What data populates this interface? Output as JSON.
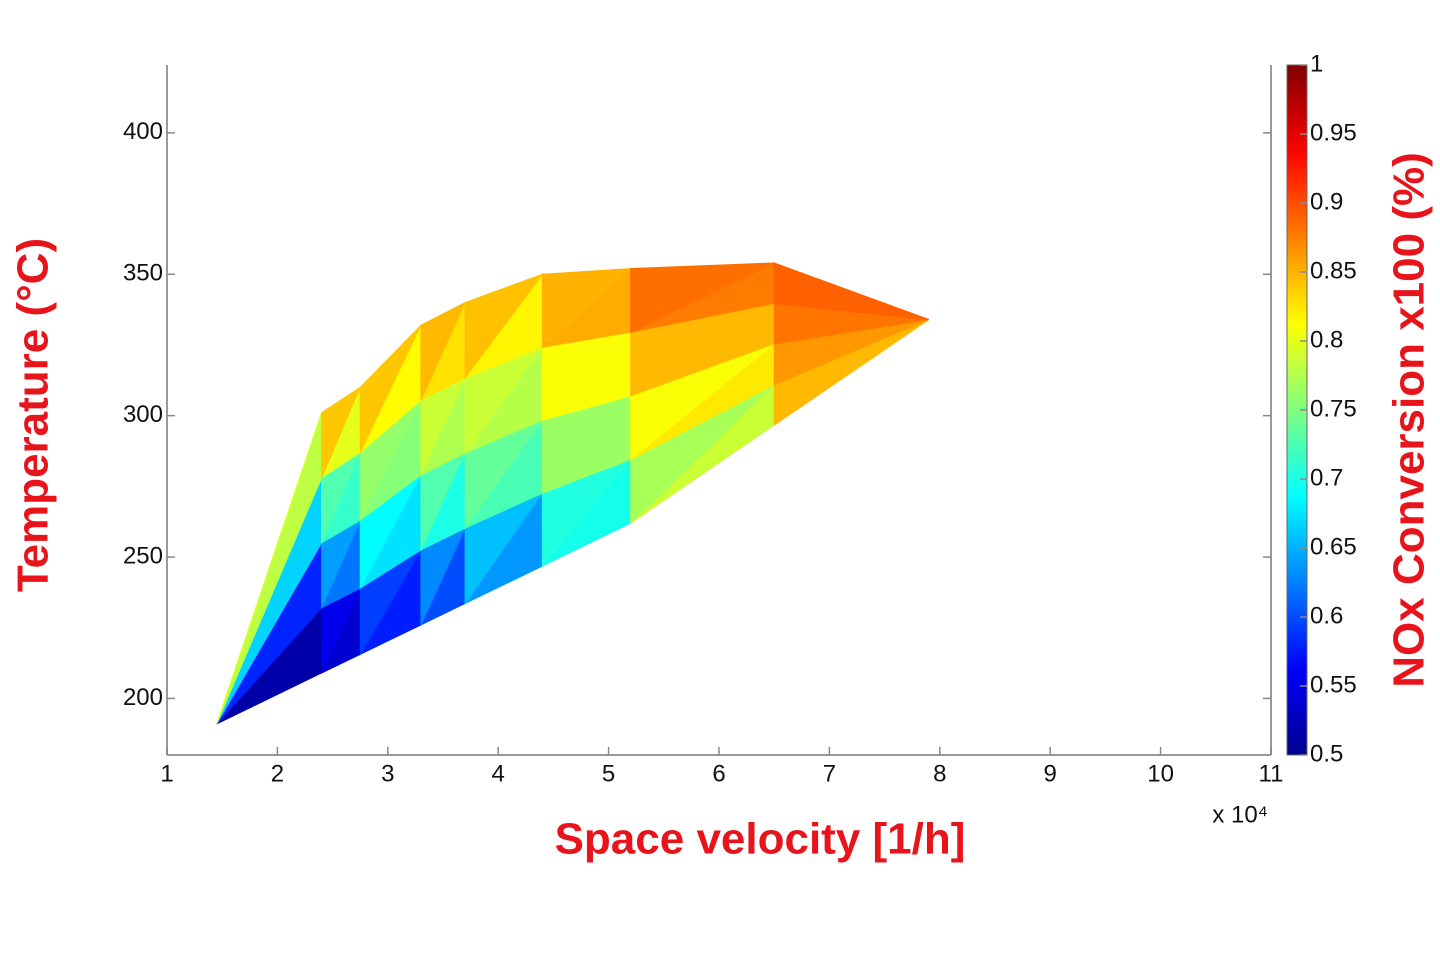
{
  "chart_data": {
    "type": "contour",
    "x_label": "Space velocity [1/h]",
    "y_label": "Temperature (°C)",
    "colorbar_label": "NOx Conversion x100 (%)",
    "x_multiplier": "x 10⁴",
    "colormap": "jet",
    "x": [
      1.45,
      2.4,
      2.75,
      3.3,
      3.7,
      4.4,
      5.2,
      6.5,
      7.9
    ],
    "y": [
      [
        191,
        191,
        191,
        191,
        191
      ],
      [
        209,
        232,
        255,
        278,
        301
      ],
      [
        215.6,
        239,
        263,
        287,
        310
      ],
      [
        226,
        252.5,
        279,
        305.5,
        332
      ],
      [
        233.6,
        260.2,
        286.8,
        313.4,
        340
      ],
      [
        246.8,
        272.6,
        298.4,
        324.2,
        350
      ],
      [
        262,
        284.5,
        307,
        329.5,
        352
      ],
      [
        296.7,
        311,
        325.4,
        339.7,
        354
      ],
      [
        334,
        334,
        334,
        334,
        334
      ]
    ],
    "z": [
      [
        0.5,
        0.52,
        0.6,
        0.7,
        0.8
      ],
      [
        0.5,
        0.56,
        0.66,
        0.74,
        0.9
      ],
      [
        0.52,
        0.6,
        0.7,
        0.78,
        0.88
      ],
      [
        0.55,
        0.66,
        0.76,
        0.8,
        0.86
      ],
      [
        0.57,
        0.68,
        0.76,
        0.8,
        0.88
      ],
      [
        0.62,
        0.72,
        0.77,
        0.8,
        0.85
      ],
      [
        0.7,
        0.77,
        0.8,
        0.86,
        0.9
      ],
      [
        0.82,
        0.84,
        0.86,
        0.88,
        0.89
      ],
      [
        0.87,
        0.88,
        0.89,
        0.9,
        0.9
      ]
    ],
    "xlim": [
      1,
      11
    ],
    "xticks": [
      1,
      2,
      3,
      4,
      5,
      6,
      7,
      8,
      9,
      10,
      11
    ],
    "ylim": [
      180,
      424
    ],
    "yticks": [
      200,
      250,
      300,
      350,
      400
    ],
    "clim": [
      0.5,
      1
    ],
    "cticks": [
      0.5,
      0.55,
      0.6,
      0.65,
      0.7,
      0.75,
      0.8,
      0.85,
      0.9,
      0.95,
      1
    ]
  }
}
